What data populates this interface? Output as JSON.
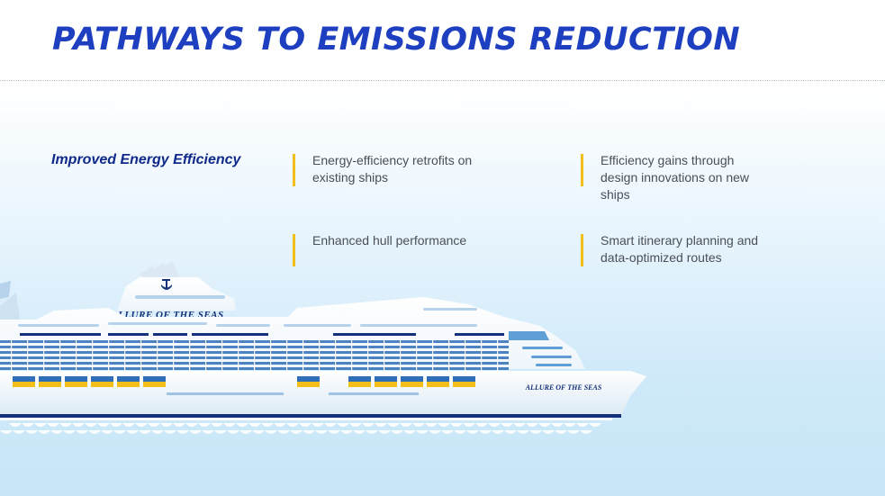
{
  "header": {
    "title": "PATHWAYS TO EMISSIONS REDUCTION"
  },
  "section": {
    "label": "Improved Energy Efficiency",
    "items": [
      {
        "text": "Energy-efficiency retrofits on existing ships"
      },
      {
        "text": "Efficiency gains through design innovations on new ships"
      },
      {
        "text": "Enhanced hull performance"
      },
      {
        "text": "Smart itinerary planning and data-optimized routes"
      }
    ]
  },
  "ship": {
    "name_upper": "ALLURE OF THE SEAS",
    "name_hull": "ALLURE OF THE SEAS"
  },
  "colors": {
    "title": "#1e3fbf",
    "accent_bar": "#f2be1a",
    "label": "#0f2a8a",
    "ship_navy": "#15307a",
    "ship_windows": "#2f6fb8",
    "ship_yellow": "#f2be1a",
    "hull": "#ffffff"
  }
}
